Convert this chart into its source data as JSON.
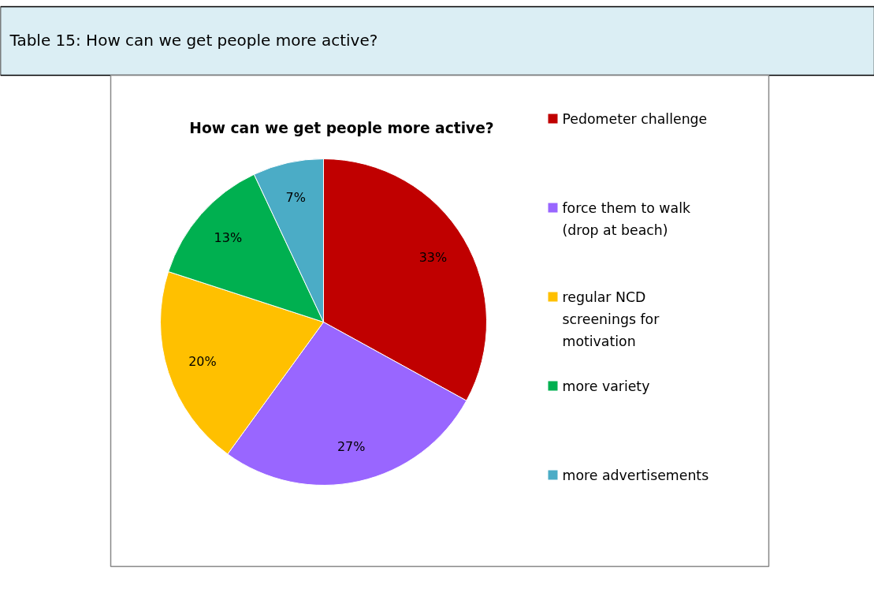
{
  "chart_data": {
    "type": "pie",
    "title": "How can we get people more active?",
    "annotations": [
      "Table 15: How can we get people more active?"
    ],
    "categories": [
      "Pedometer challenge",
      "force them to walk (drop at beach)",
      "regular NCD screenings for motivation",
      "more variety",
      "more advertisements"
    ],
    "values": [
      33,
      27,
      20,
      13,
      7
    ],
    "colors": [
      "#c00000",
      "#9966ff",
      "#ffc000",
      "#00b050",
      "#4bacc6"
    ],
    "value_labels": [
      "33%",
      "27%",
      "20%",
      "13%",
      "7%"
    ],
    "legend": "right"
  }
}
